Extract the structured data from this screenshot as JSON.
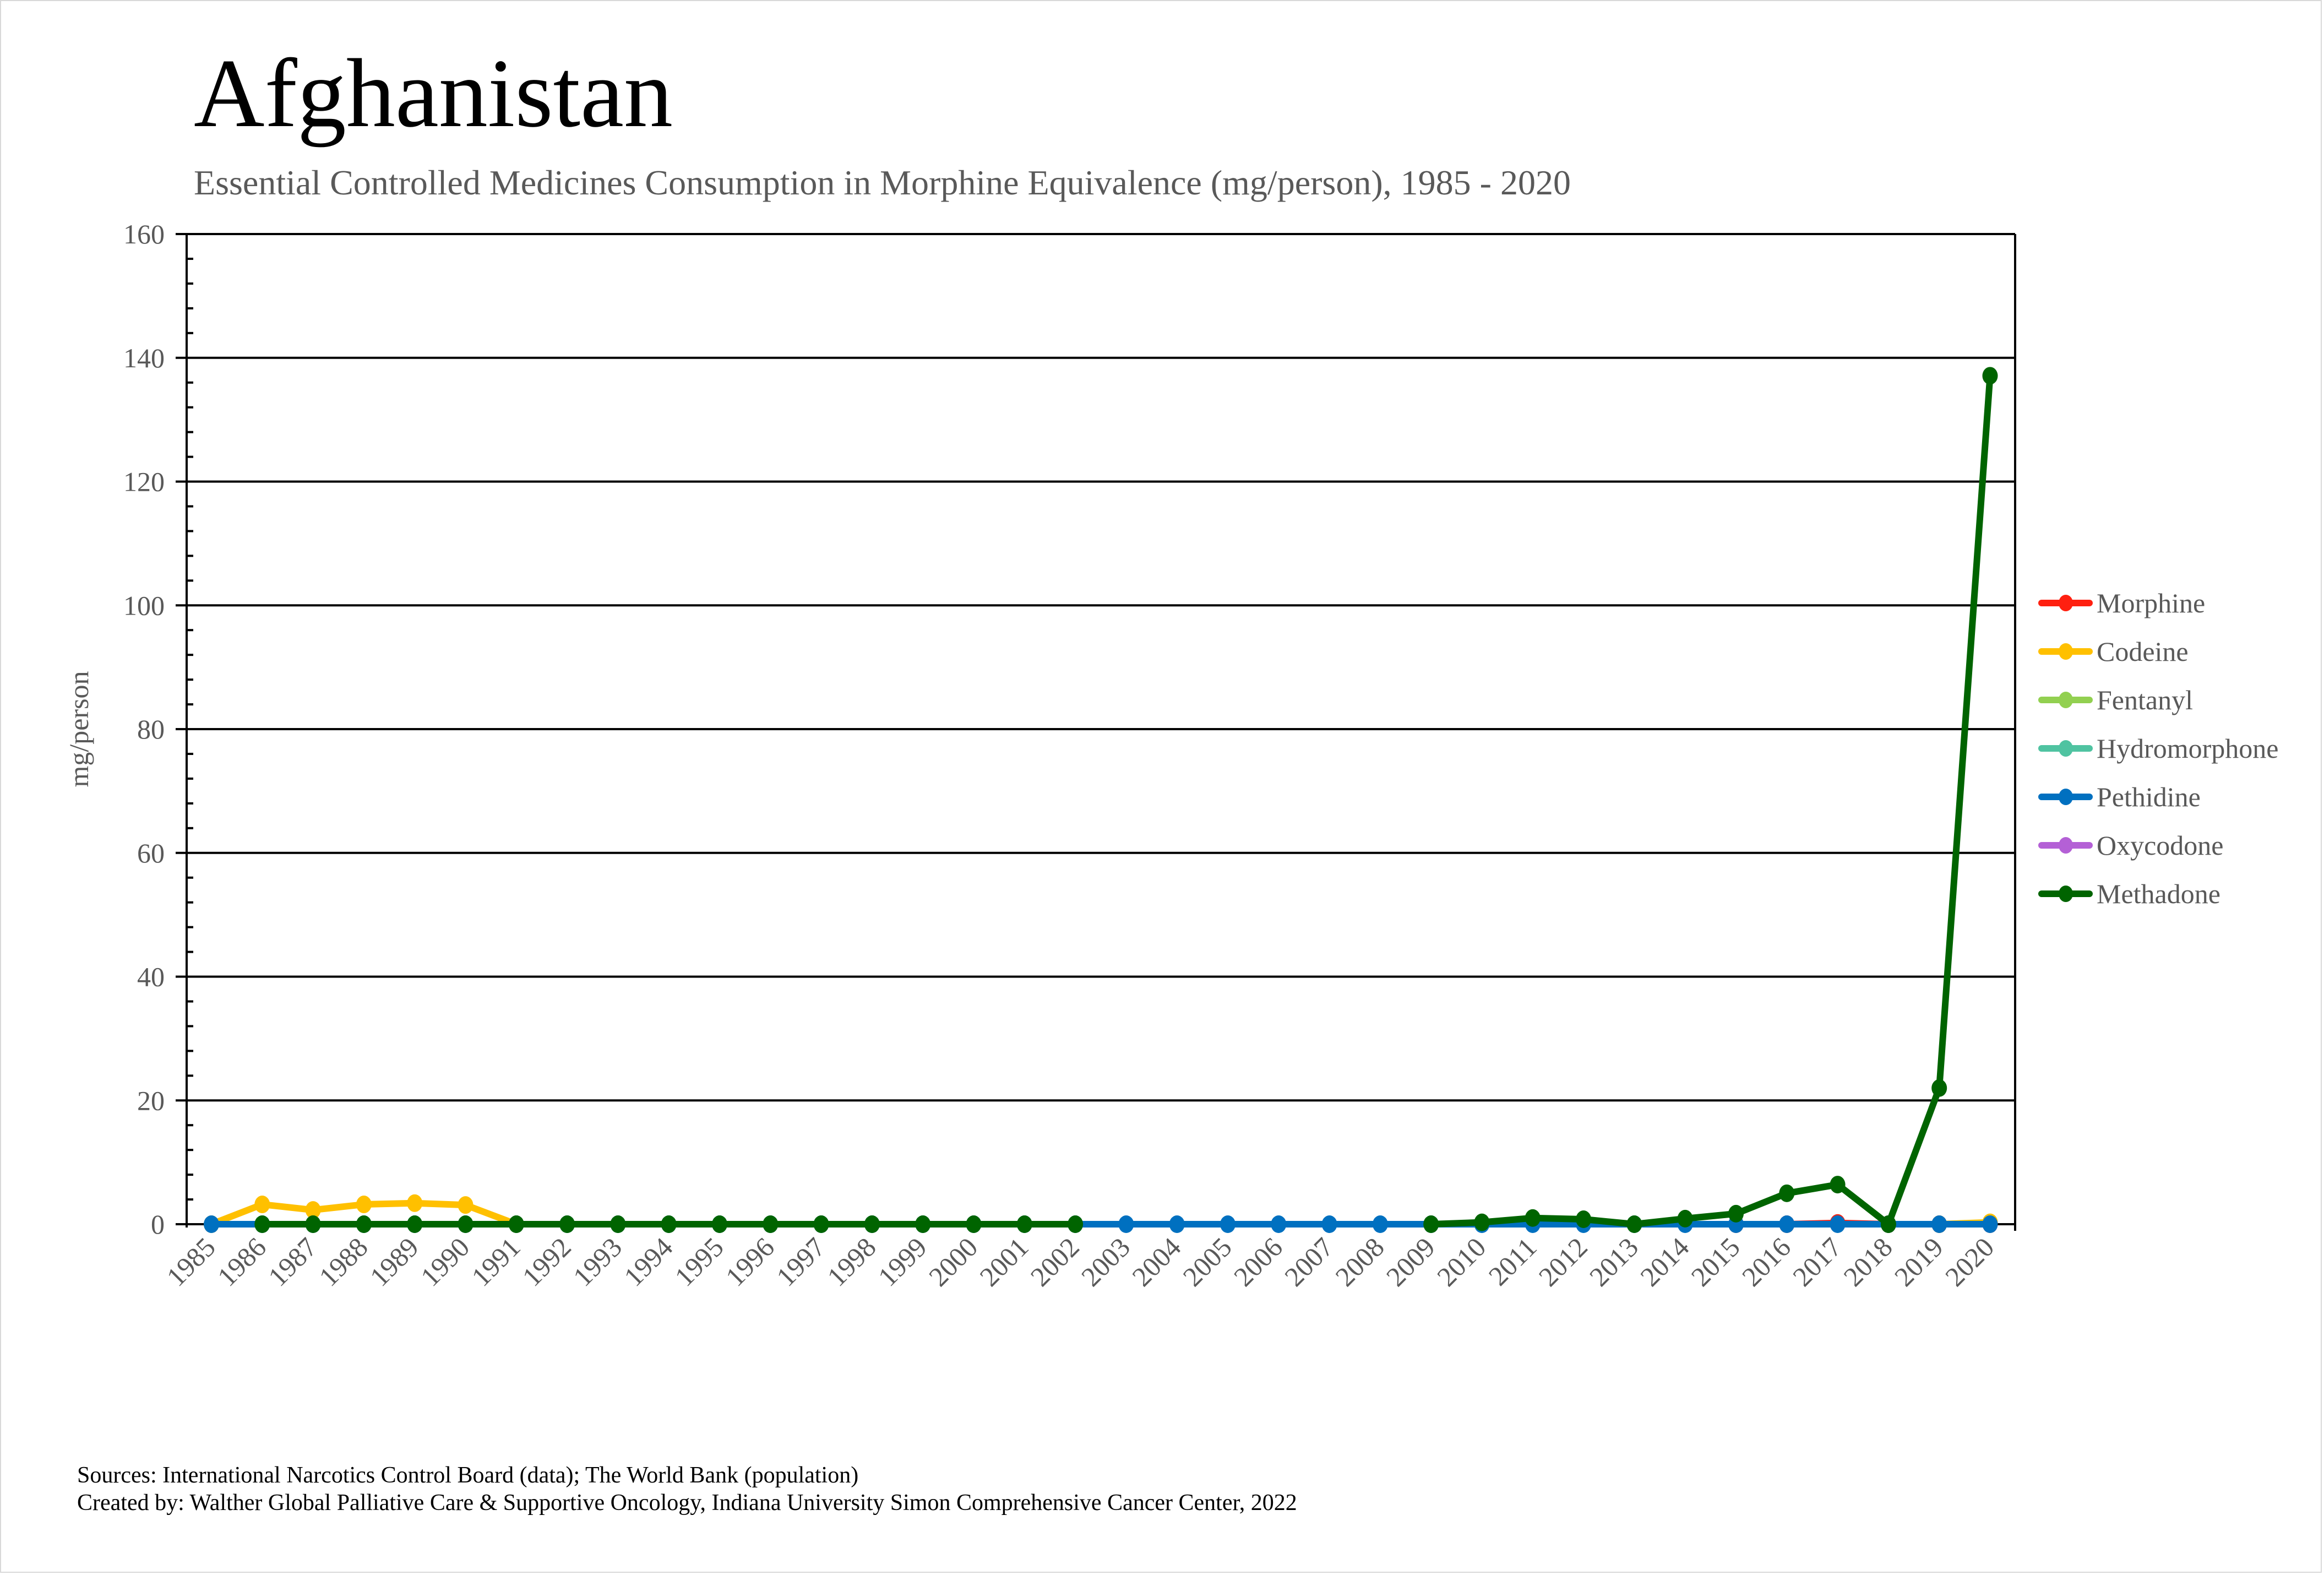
{
  "header": {
    "title": "Afghanistan",
    "subtitle": "Essential Controlled Medicines Consumption in Morphine Equivalence (mg/person), 1985 - 2020"
  },
  "footer": {
    "sources": "Sources: International Narcotics Control Board (data); The World Bank (population)",
    "created_by": "Created by: Walther Global Palliative Care & Supportive Oncology, Indiana University Simon Comprehensive Cancer Center, 2022"
  },
  "chart_data": {
    "type": "line",
    "title": "Afghanistan",
    "subtitle": "Essential Controlled Medicines Consumption in Morphine Equivalence (mg/person), 1985 - 2020",
    "xlabel": "",
    "ylabel": "mg/person",
    "ylim": [
      0,
      160
    ],
    "yticks": [
      0,
      20,
      40,
      60,
      80,
      100,
      120,
      140,
      160
    ],
    "y_minor_step": 4,
    "grid": true,
    "legend_position": "right",
    "x": [
      "1985",
      "1986",
      "1987",
      "1988",
      "1989",
      "1990",
      "1991",
      "1992",
      "1993",
      "1994",
      "1995",
      "1996",
      "1997",
      "1998",
      "1999",
      "2000",
      "2001",
      "2002",
      "2003",
      "2004",
      "2005",
      "2006",
      "2007",
      "2008",
      "2009",
      "2010",
      "2011",
      "2012",
      "2013",
      "2014",
      "2015",
      "2016",
      "2017",
      "2018",
      "2019",
      "2020"
    ],
    "series": [
      {
        "name": "Morphine",
        "color": "#FF2010",
        "values": [
          null,
          null,
          null,
          null,
          null,
          null,
          null,
          null,
          null,
          null,
          null,
          null,
          null,
          null,
          null,
          null,
          null,
          null,
          null,
          null,
          null,
          null,
          null,
          null,
          null,
          null,
          null,
          null,
          null,
          null,
          0.0,
          0.0,
          0.2,
          0.0,
          0.0,
          0.0
        ]
      },
      {
        "name": "Codeine",
        "color": "#FFC000",
        "values": [
          0.0,
          3.2,
          2.3,
          3.2,
          3.4,
          3.1,
          0.0,
          null,
          null,
          null,
          null,
          null,
          null,
          null,
          null,
          null,
          null,
          null,
          null,
          null,
          null,
          null,
          null,
          null,
          null,
          null,
          0.1,
          0.1,
          null,
          null,
          null,
          null,
          null,
          null,
          0.0,
          0.3
        ]
      },
      {
        "name": "Fentanyl",
        "color": "#92D050",
        "values": [
          null,
          null,
          null,
          null,
          null,
          null,
          null,
          null,
          null,
          null,
          null,
          null,
          null,
          null,
          null,
          null,
          null,
          null,
          null,
          null,
          null,
          null,
          null,
          null,
          null,
          null,
          null,
          null,
          null,
          null,
          null,
          null,
          null,
          null,
          null,
          null
        ]
      },
      {
        "name": "Hydromorphone",
        "color": "#4FC3A1",
        "values": [
          null,
          null,
          null,
          null,
          null,
          null,
          null,
          null,
          null,
          null,
          null,
          null,
          null,
          null,
          null,
          null,
          null,
          null,
          null,
          null,
          null,
          null,
          null,
          null,
          null,
          null,
          null,
          null,
          null,
          null,
          null,
          null,
          null,
          null,
          null,
          null
        ]
      },
      {
        "name": "Pethidine",
        "color": "#0070C0",
        "values": [
          0.0,
          0.0,
          0.0,
          0.0,
          0.0,
          0.0,
          0.0,
          0.0,
          0.0,
          0.0,
          0.0,
          0.0,
          0.0,
          0.0,
          0.0,
          0.0,
          0.0,
          0.0,
          0.0,
          0.0,
          0.0,
          0.0,
          0.0,
          0.0,
          0.0,
          0.0,
          0.0,
          0.0,
          0.0,
          0.0,
          0.0,
          0.0,
          0.0,
          0.0,
          0.0,
          0.0
        ]
      },
      {
        "name": "Oxycodone",
        "color": "#B460D6",
        "values": [
          null,
          null,
          null,
          null,
          null,
          null,
          null,
          null,
          null,
          null,
          null,
          null,
          null,
          null,
          null,
          null,
          null,
          null,
          null,
          null,
          null,
          null,
          null,
          null,
          null,
          null,
          null,
          null,
          null,
          null,
          null,
          null,
          null,
          null,
          null,
          null
        ]
      },
      {
        "name": "Methadone",
        "color": "#006400",
        "values": [
          null,
          0.0,
          0.0,
          0.0,
          0.0,
          0.0,
          0.0,
          0.0,
          0.0,
          0.0,
          0.0,
          0.0,
          0.0,
          0.0,
          0.0,
          0.0,
          0.0,
          0.0,
          null,
          null,
          null,
          null,
          null,
          null,
          0.0,
          0.3,
          1.0,
          0.8,
          0.0,
          0.9,
          1.7,
          5.0,
          6.4,
          0.0,
          22.0,
          137.1
        ]
      }
    ]
  }
}
